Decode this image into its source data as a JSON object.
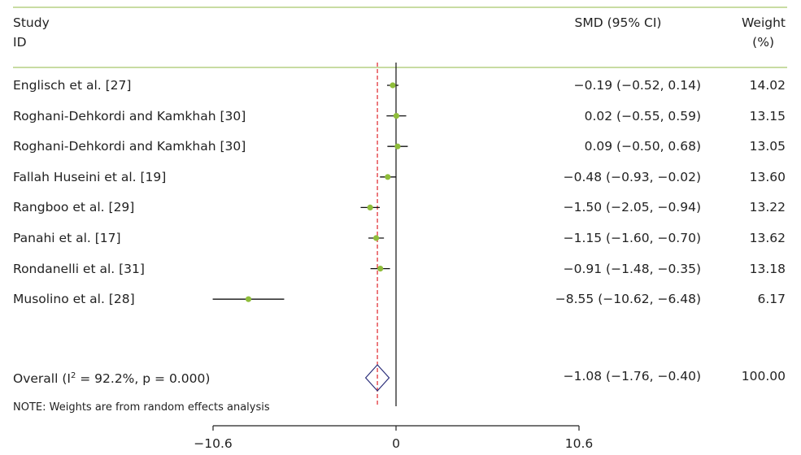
{
  "chart_data": {
    "type": "forest",
    "headers": {
      "study_line1": "Study",
      "study_line2": "ID",
      "estimate": "SMD (95% CI)",
      "weight_line1": "Weight",
      "weight_line2": "(%)"
    },
    "studies": [
      {
        "label": "Englisch et al. [27]",
        "smd": -0.19,
        "lower": -0.52,
        "upper": 0.14,
        "ci_text": "−0.19 (−0.52, 0.14)",
        "weight": "14.02"
      },
      {
        "label": "Roghani-Dehkordi and Kamkhah [30]",
        "smd": 0.02,
        "lower": -0.55,
        "upper": 0.59,
        "ci_text": "0.02 (−0.55, 0.59)",
        "weight": "13.15"
      },
      {
        "label": "Roghani-Dehkordi and Kamkhah [30]",
        "smd": 0.09,
        "lower": -0.5,
        "upper": 0.68,
        "ci_text": "0.09 (−0.50, 0.68)",
        "weight": "13.05"
      },
      {
        "label": "Fallah Huseini et al. [19]",
        "smd": -0.48,
        "lower": -0.93,
        "upper": -0.02,
        "ci_text": "−0.48 (−0.93, −0.02)",
        "weight": "13.60"
      },
      {
        "label": "Rangboo et al. [29]",
        "smd": -1.5,
        "lower": -2.05,
        "upper": -0.94,
        "ci_text": "−1.50 (−2.05, −0.94)",
        "weight": "13.22"
      },
      {
        "label": "Panahi et al. [17]",
        "smd": -1.15,
        "lower": -1.6,
        "upper": -0.7,
        "ci_text": "−1.15 (−1.60, −0.70)",
        "weight": "13.62"
      },
      {
        "label": "Rondanelli et al. [31]",
        "smd": -0.91,
        "lower": -1.48,
        "upper": -0.35,
        "ci_text": "−0.91 (−1.48, −0.35)",
        "weight": "13.18"
      },
      {
        "label": "Musolino et al. [28]",
        "smd": -8.55,
        "lower": -10.62,
        "upper": -6.48,
        "ci_text": "−8.55 (−10.62, −6.48)",
        "weight": "6.17"
      }
    ],
    "overall": {
      "label_prefix": "Overall (I",
      "label_sup": "2",
      "label_suffix": " = 92.2%, p = 0.000)",
      "smd": -1.08,
      "lower": -1.76,
      "upper": -0.4,
      "ci_text": "−1.08 (−1.76, −0.40)",
      "weight": "100.00"
    },
    "note": "NOTE: Weights are from random effects analysis",
    "x_ticks": [
      -10.6,
      0,
      10.6
    ],
    "x_tick_labels": [
      "−10.6",
      "0",
      "10.6"
    ],
    "xlim": [
      -10.6,
      10.6
    ],
    "colors": {
      "marker": "#8fbd3a",
      "ci_line": "#111111",
      "null_line": "#111111",
      "overall_line": "#e0262b",
      "diamond": "#2b2e7a",
      "rule": "#a6c66a"
    }
  }
}
